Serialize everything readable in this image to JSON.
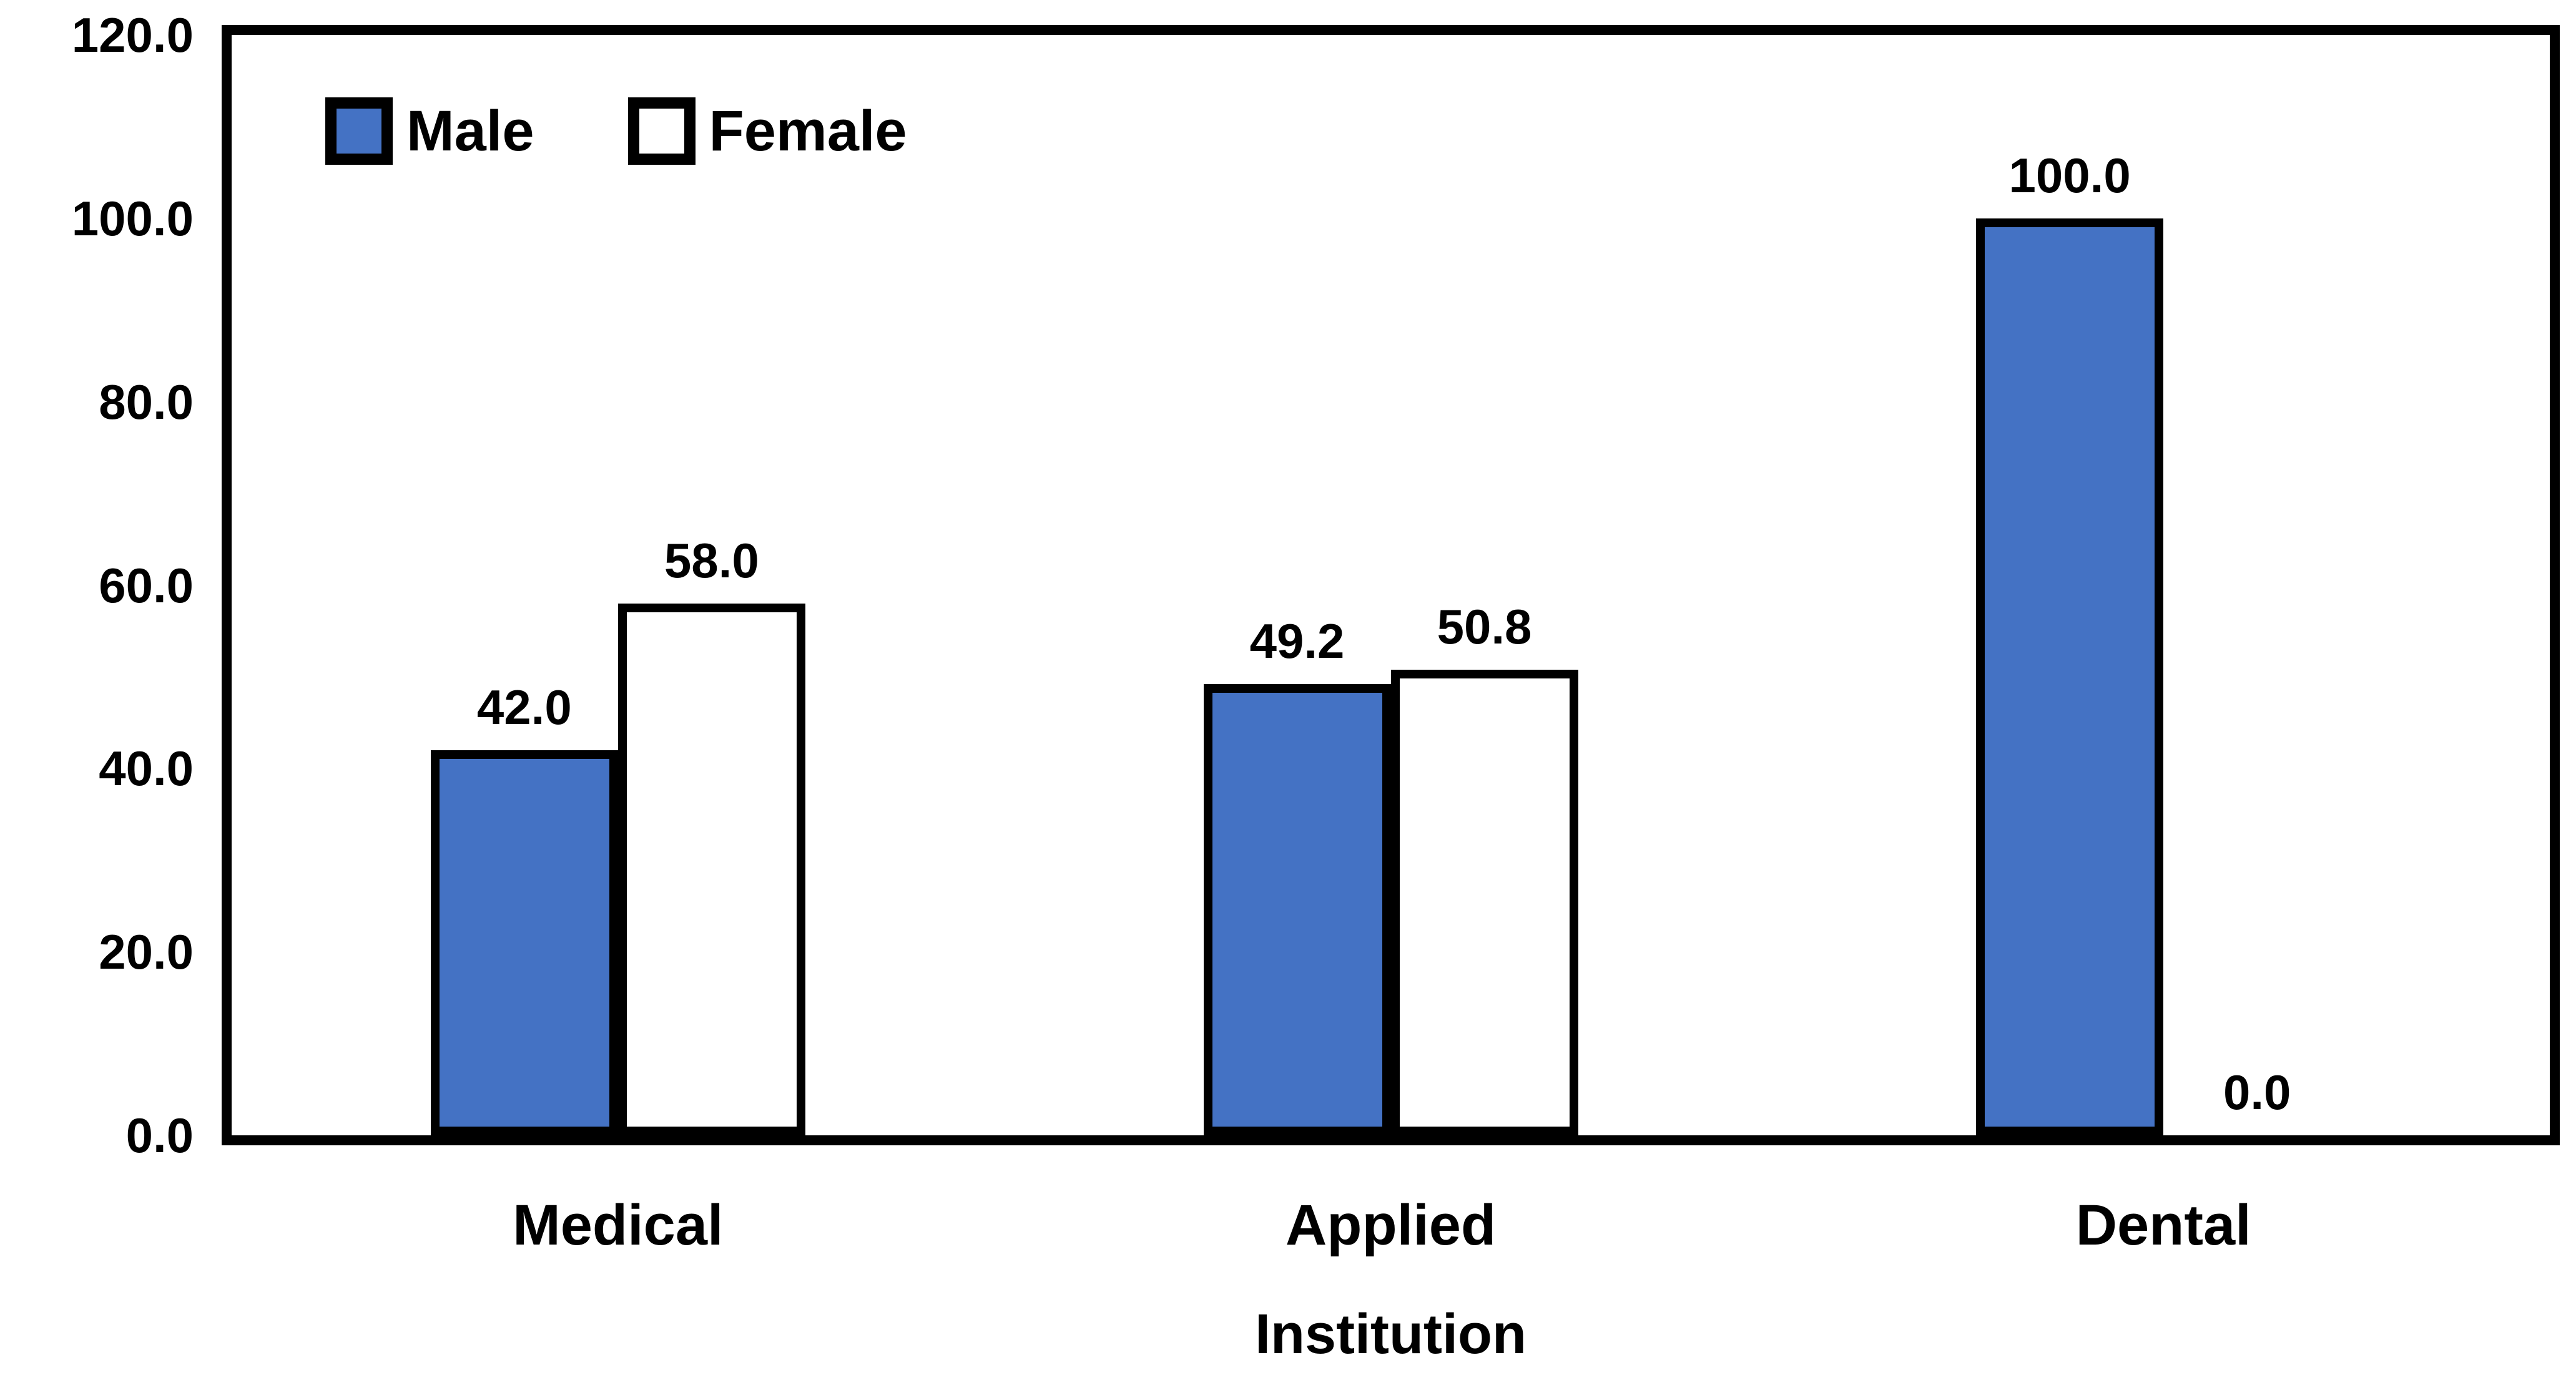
{
  "chart_data": {
    "type": "bar",
    "title": "",
    "categories": [
      "Medical",
      "Applied",
      "Dental"
    ],
    "series": [
      {
        "name": "Male",
        "color": "#4472C4",
        "values": [
          42.0,
          49.2,
          100.0
        ],
        "labels": [
          "42.0",
          "49.2",
          "100.0"
        ]
      },
      {
        "name": "Female",
        "color": "#FFFFFF",
        "values": [
          58.0,
          50.8,
          0.0
        ],
        "labels": [
          "58.0",
          "50.8",
          "0.0"
        ]
      }
    ],
    "xlabel": "Institution",
    "ylabel": "",
    "ylim": [
      0,
      120
    ],
    "ytick_labels": [
      "0.0",
      "20.0",
      "40.0",
      "60.0",
      "80.0",
      "100.0",
      "120.0"
    ],
    "ytick_values": [
      0,
      20,
      40,
      60,
      80,
      100,
      120
    ],
    "grid": false,
    "legend_position": "top-left-inside",
    "bar_border_color": "#000000",
    "plot_border_color": "#000000",
    "text_color": "#000000"
  }
}
